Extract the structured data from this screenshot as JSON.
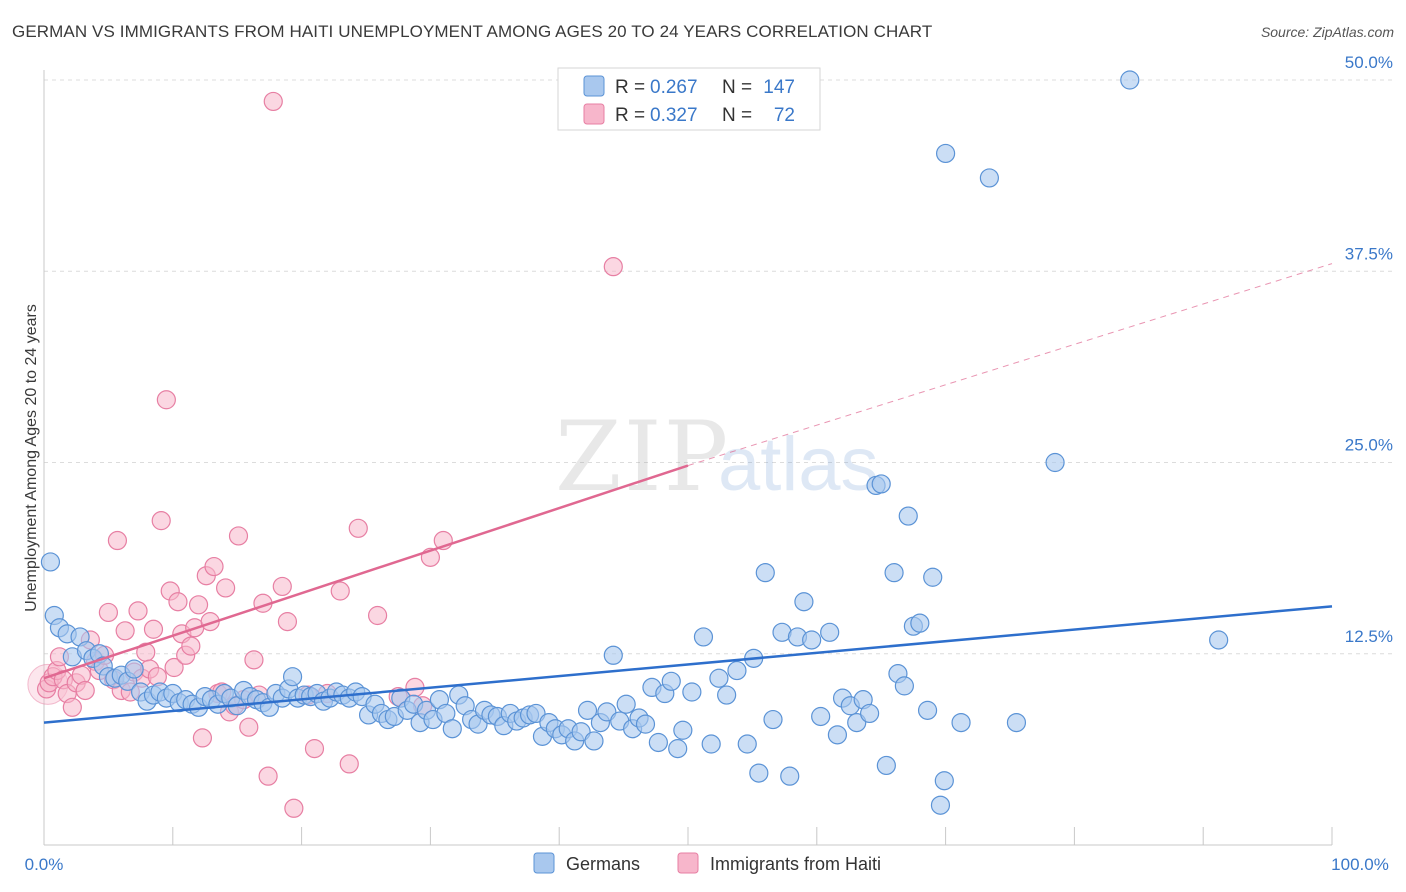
{
  "header": {
    "title": "GERMAN VS IMMIGRANTS FROM HAITI UNEMPLOYMENT AMONG AGES 20 TO 24 YEARS CORRELATION CHART",
    "source": "Source: ZipAtlas.com"
  },
  "legend": {
    "r_label": "R =",
    "n_label": "N =",
    "rows": [
      {
        "r": "0.267",
        "n": "147"
      },
      {
        "r": "0.327",
        "n": "72"
      }
    ]
  },
  "bottom_legend": [
    "Germans",
    "Immigrants from Haiti"
  ],
  "watermark": {
    "zip": "ZIP",
    "atlas": "atlas"
  },
  "colors": {
    "germans_fill": "#a9c8ee",
    "germans_stroke": "#5b93d6",
    "germans_line": "#2e6fcc",
    "haiti_fill": "#f7b6cb",
    "haiti_stroke": "#e77fa3",
    "haiti_line": "#e06891",
    "tick_text": "#3a78c9"
  },
  "chart_data": {
    "type": "scatter",
    "title": "GERMAN VS IMMIGRANTS FROM HAITI UNEMPLOYMENT AMONG AGES 20 TO 24 YEARS CORRELATION CHART",
    "xlabel": "",
    "ylabel": "Unemployment Among Ages 20 to 24 years",
    "xlim": [
      0,
      100
    ],
    "ylim": [
      0,
      50
    ],
    "x_tick_labels": [
      "0.0%",
      "100.0%"
    ],
    "y_ticks": [
      12.5,
      25.0,
      37.5,
      50.0
    ],
    "y_tick_labels": [
      "12.5%",
      "25.0%",
      "37.5%",
      "50.0%"
    ],
    "grid": "horizontal dashed",
    "legend_position": "top-center",
    "series": [
      {
        "name": "Germans",
        "r": 0.267,
        "n": 147,
        "trend": {
          "x0": 0,
          "y0": 8.0,
          "x1": 100,
          "y1": 15.6
        },
        "points": [
          [
            0.5,
            18.5
          ],
          [
            0.8,
            15.0
          ],
          [
            1.2,
            14.2
          ],
          [
            1.8,
            13.8
          ],
          [
            2.2,
            12.3
          ],
          [
            2.8,
            13.6
          ],
          [
            3.3,
            12.7
          ],
          [
            3.8,
            12.2
          ],
          [
            4.3,
            12.5
          ],
          [
            4.6,
            11.7
          ],
          [
            5.0,
            11.0
          ],
          [
            5.5,
            10.9
          ],
          [
            6.0,
            11.1
          ],
          [
            6.5,
            10.7
          ],
          [
            7.0,
            11.5
          ],
          [
            7.5,
            10.0
          ],
          [
            8.0,
            9.4
          ],
          [
            8.5,
            9.8
          ],
          [
            9.0,
            10.0
          ],
          [
            9.5,
            9.6
          ],
          [
            10.0,
            9.9
          ],
          [
            10.5,
            9.3
          ],
          [
            11.0,
            9.5
          ],
          [
            11.5,
            9.2
          ],
          [
            12.0,
            9.0
          ],
          [
            12.5,
            9.7
          ],
          [
            13.0,
            9.5
          ],
          [
            13.5,
            9.2
          ],
          [
            14.0,
            9.9
          ],
          [
            14.5,
            9.6
          ],
          [
            15.0,
            9.1
          ],
          [
            15.5,
            10.1
          ],
          [
            16.0,
            9.7
          ],
          [
            16.5,
            9.5
          ],
          [
            17.0,
            9.3
          ],
          [
            17.5,
            9.0
          ],
          [
            18.0,
            9.9
          ],
          [
            18.5,
            9.6
          ],
          [
            19.0,
            10.2
          ],
          [
            19.3,
            11.0
          ],
          [
            19.7,
            9.6
          ],
          [
            20.2,
            9.8
          ],
          [
            20.7,
            9.7
          ],
          [
            21.2,
            9.9
          ],
          [
            21.7,
            9.4
          ],
          [
            22.2,
            9.6
          ],
          [
            22.7,
            10.0
          ],
          [
            23.2,
            9.8
          ],
          [
            23.7,
            9.6
          ],
          [
            24.2,
            10.0
          ],
          [
            24.7,
            9.7
          ],
          [
            25.2,
            8.5
          ],
          [
            25.7,
            9.2
          ],
          [
            26.2,
            8.6
          ],
          [
            26.7,
            8.2
          ],
          [
            27.2,
            8.4
          ],
          [
            27.7,
            9.6
          ],
          [
            28.2,
            8.8
          ],
          [
            28.7,
            9.2
          ],
          [
            29.2,
            8.0
          ],
          [
            29.7,
            8.8
          ],
          [
            30.2,
            8.2
          ],
          [
            30.7,
            9.5
          ],
          [
            31.2,
            8.6
          ],
          [
            31.7,
            7.6
          ],
          [
            32.2,
            9.8
          ],
          [
            32.7,
            9.1
          ],
          [
            33.2,
            8.2
          ],
          [
            33.7,
            7.9
          ],
          [
            34.2,
            8.8
          ],
          [
            34.7,
            8.5
          ],
          [
            35.2,
            8.4
          ],
          [
            35.7,
            7.8
          ],
          [
            36.2,
            8.6
          ],
          [
            36.7,
            8.1
          ],
          [
            37.2,
            8.3
          ],
          [
            37.7,
            8.5
          ],
          [
            38.2,
            8.6
          ],
          [
            38.7,
            7.1
          ],
          [
            39.2,
            8.0
          ],
          [
            39.7,
            7.6
          ],
          [
            40.2,
            7.2
          ],
          [
            40.7,
            7.6
          ],
          [
            41.2,
            6.8
          ],
          [
            41.7,
            7.4
          ],
          [
            42.2,
            8.8
          ],
          [
            42.7,
            6.8
          ],
          [
            43.2,
            8.0
          ],
          [
            43.7,
            8.7
          ],
          [
            44.2,
            12.4
          ],
          [
            44.7,
            8.1
          ],
          [
            45.2,
            9.2
          ],
          [
            45.7,
            7.6
          ],
          [
            46.2,
            8.3
          ],
          [
            46.7,
            7.9
          ],
          [
            47.2,
            10.3
          ],
          [
            47.7,
            6.7
          ],
          [
            48.2,
            9.9
          ],
          [
            48.7,
            10.7
          ],
          [
            49.2,
            6.3
          ],
          [
            49.6,
            7.5
          ],
          [
            50.3,
            10.0
          ],
          [
            51.2,
            13.6
          ],
          [
            51.8,
            6.6
          ],
          [
            52.4,
            10.9
          ],
          [
            53.0,
            9.8
          ],
          [
            53.8,
            11.4
          ],
          [
            54.6,
            6.6
          ],
          [
            55.1,
            12.2
          ],
          [
            55.5,
            4.7
          ],
          [
            56.0,
            17.8
          ],
          [
            56.6,
            8.2
          ],
          [
            57.3,
            13.9
          ],
          [
            57.9,
            4.5
          ],
          [
            58.5,
            13.6
          ],
          [
            59.0,
            15.9
          ],
          [
            59.6,
            13.4
          ],
          [
            60.3,
            8.4
          ],
          [
            61.0,
            13.9
          ],
          [
            61.6,
            7.2
          ],
          [
            62.0,
            9.6
          ],
          [
            62.6,
            9.1
          ],
          [
            63.1,
            8.0
          ],
          [
            63.6,
            9.5
          ],
          [
            64.1,
            8.6
          ],
          [
            64.6,
            23.5
          ],
          [
            65.0,
            23.6
          ],
          [
            65.4,
            5.2
          ],
          [
            66.0,
            17.8
          ],
          [
            66.3,
            11.2
          ],
          [
            66.8,
            10.4
          ],
          [
            67.1,
            21.5
          ],
          [
            67.5,
            14.3
          ],
          [
            68.0,
            14.5
          ],
          [
            68.6,
            8.8
          ],
          [
            69.0,
            17.5
          ],
          [
            69.6,
            2.6
          ],
          [
            69.9,
            4.2
          ],
          [
            70.0,
            45.2
          ],
          [
            71.2,
            8.0
          ],
          [
            73.4,
            43.6
          ],
          [
            75.5,
            8.0
          ],
          [
            78.5,
            25.0
          ],
          [
            84.3,
            50.0
          ],
          [
            91.2,
            13.4
          ]
        ]
      },
      {
        "name": "Immigrants from Haiti",
        "r": 0.327,
        "n": 72,
        "trend_solid": {
          "x0": 0,
          "y0": 10.9,
          "x1": 50,
          "y1": 24.8
        },
        "trend_dashed": {
          "x0": 50,
          "y0": 24.8,
          "x1": 100,
          "y1": 38.0
        },
        "points": [
          [
            0.2,
            10.2
          ],
          [
            0.4,
            10.6
          ],
          [
            0.7,
            11.0
          ],
          [
            1.0,
            11.4
          ],
          [
            1.2,
            12.3
          ],
          [
            1.5,
            10.8
          ],
          [
            1.8,
            9.9
          ],
          [
            2.2,
            9.0
          ],
          [
            2.5,
            10.6
          ],
          [
            2.9,
            11.1
          ],
          [
            3.2,
            10.1
          ],
          [
            3.6,
            13.4
          ],
          [
            4.0,
            12.0
          ],
          [
            4.3,
            11.4
          ],
          [
            4.7,
            12.4
          ],
          [
            5.0,
            15.2
          ],
          [
            5.4,
            10.8
          ],
          [
            5.7,
            19.9
          ],
          [
            6.0,
            10.1
          ],
          [
            6.3,
            14.0
          ],
          [
            6.7,
            10.0
          ],
          [
            7.0,
            11.3
          ],
          [
            7.3,
            15.3
          ],
          [
            7.6,
            10.9
          ],
          [
            7.9,
            12.6
          ],
          [
            8.2,
            11.5
          ],
          [
            8.5,
            14.1
          ],
          [
            8.8,
            11.0
          ],
          [
            9.1,
            21.2
          ],
          [
            9.5,
            29.1
          ],
          [
            9.8,
            16.6
          ],
          [
            10.1,
            11.6
          ],
          [
            10.4,
            15.9
          ],
          [
            10.7,
            13.8
          ],
          [
            11.0,
            12.4
          ],
          [
            11.4,
            13.0
          ],
          [
            11.7,
            14.2
          ],
          [
            12.0,
            15.7
          ],
          [
            12.3,
            7.0
          ],
          [
            12.6,
            17.6
          ],
          [
            12.9,
            14.6
          ],
          [
            13.2,
            18.2
          ],
          [
            13.5,
            9.9
          ],
          [
            13.8,
            10.0
          ],
          [
            14.1,
            16.8
          ],
          [
            14.4,
            8.7
          ],
          [
            14.8,
            9.1
          ],
          [
            15.1,
            20.2
          ],
          [
            15.5,
            9.5
          ],
          [
            15.9,
            7.7
          ],
          [
            16.3,
            12.1
          ],
          [
            16.7,
            9.8
          ],
          [
            17.0,
            15.8
          ],
          [
            17.4,
            4.5
          ],
          [
            17.8,
            48.6
          ],
          [
            18.5,
            16.9
          ],
          [
            18.9,
            14.6
          ],
          [
            19.4,
            2.4
          ],
          [
            20.5,
            9.8
          ],
          [
            21.0,
            6.3
          ],
          [
            22.0,
            9.9
          ],
          [
            23.0,
            16.6
          ],
          [
            23.7,
            5.3
          ],
          [
            24.4,
            20.7
          ],
          [
            25.9,
            15.0
          ],
          [
            27.5,
            9.7
          ],
          [
            28.8,
            10.3
          ],
          [
            29.4,
            9.1
          ],
          [
            30.0,
            18.8
          ],
          [
            31.0,
            19.9
          ],
          [
            44.2,
            37.8
          ]
        ]
      }
    ]
  }
}
